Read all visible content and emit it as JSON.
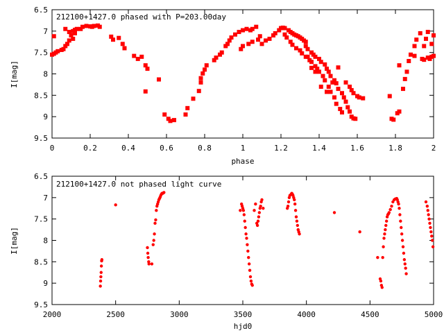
{
  "chart_data": [
    {
      "type": "scatter",
      "title": "212100+1427.0 phased with P=203.00day",
      "xlabel": "phase",
      "ylabel": "I[mag]",
      "xlim": [
        0,
        2
      ],
      "ylim": [
        9.5,
        6.5
      ],
      "y_inverted": true,
      "x_ticks": [
        "0",
        "0.2",
        "0.4",
        "0.6",
        "0.8",
        "1",
        "1.2",
        "1.4",
        "1.6",
        "1.8",
        "2"
      ],
      "x_tick_values": [
        0,
        0.2,
        0.4,
        0.6,
        0.8,
        1.0,
        1.2,
        1.4,
        1.6,
        1.8,
        2.0
      ],
      "y_ticks": [
        "6.5",
        "7",
        "7.5",
        "8",
        "8.5",
        "9",
        "9.5"
      ],
      "y_tick_values": [
        6.5,
        7,
        7.5,
        8,
        8.5,
        9,
        9.5
      ],
      "grid": false,
      "marker": "filled-square",
      "color": "#ff0000",
      "points": [
        [
          0.0,
          7.55
        ],
        [
          0.01,
          7.53
        ],
        [
          0.02,
          7.5
        ],
        [
          0.03,
          7.47
        ],
        [
          0.05,
          7.44
        ],
        [
          0.06,
          7.42
        ],
        [
          0.07,
          7.35
        ],
        [
          0.08,
          7.3
        ],
        [
          0.09,
          7.22
        ],
        [
          0.1,
          7.1
        ],
        [
          0.11,
          7.0
        ],
        [
          0.12,
          6.97
        ],
        [
          0.13,
          6.95
        ],
        [
          0.16,
          6.9
        ],
        [
          0.18,
          6.88
        ],
        [
          0.2,
          6.89
        ],
        [
          0.21,
          6.9
        ],
        [
          0.22,
          6.88
        ],
        [
          0.24,
          6.87
        ],
        [
          0.25,
          6.9
        ],
        [
          0.01,
          7.12
        ],
        [
          0.07,
          6.95
        ],
        [
          0.09,
          7.02
        ],
        [
          0.11,
          7.18
        ],
        [
          0.12,
          7.05
        ],
        [
          0.15,
          6.95
        ],
        [
          0.31,
          7.13
        ],
        [
          0.32,
          7.2
        ],
        [
          0.35,
          7.16
        ],
        [
          0.37,
          7.3
        ],
        [
          0.38,
          7.4
        ],
        [
          0.43,
          7.58
        ],
        [
          0.45,
          7.65
        ],
        [
          0.47,
          7.6
        ],
        [
          0.49,
          7.8
        ],
        [
          0.5,
          7.88
        ],
        [
          0.49,
          8.41
        ],
        [
          0.56,
          8.13
        ],
        [
          0.59,
          8.95
        ],
        [
          0.61,
          9.05
        ],
        [
          0.62,
          9.1
        ],
        [
          0.64,
          9.08
        ],
        [
          0.7,
          8.95
        ],
        [
          0.71,
          8.8
        ],
        [
          0.74,
          8.58
        ],
        [
          0.77,
          8.4
        ],
        [
          0.78,
          8.2
        ],
        [
          0.78,
          8.1
        ],
        [
          0.79,
          7.99
        ],
        [
          0.8,
          7.9
        ],
        [
          0.81,
          7.8
        ],
        [
          0.85,
          7.68
        ],
        [
          0.86,
          7.62
        ],
        [
          0.88,
          7.55
        ],
        [
          0.89,
          7.5
        ],
        [
          0.91,
          7.35
        ],
        [
          0.92,
          7.3
        ],
        [
          0.93,
          7.22
        ],
        [
          0.94,
          7.15
        ],
        [
          0.96,
          7.08
        ],
        [
          0.98,
          7.02
        ],
        [
          1.0,
          6.98
        ],
        [
          1.02,
          6.95
        ],
        [
          1.04,
          6.98
        ],
        [
          1.05,
          6.95
        ],
        [
          1.07,
          6.9
        ],
        [
          0.99,
          7.42
        ],
        [
          1.0,
          7.35
        ],
        [
          1.03,
          7.3
        ],
        [
          1.05,
          7.25
        ],
        [
          1.08,
          7.2
        ],
        [
          1.09,
          7.12
        ],
        [
          1.1,
          7.3
        ],
        [
          1.12,
          7.22
        ],
        [
          1.14,
          7.18
        ],
        [
          1.16,
          7.1
        ],
        [
          1.17,
          7.05
        ],
        [
          1.19,
          6.98
        ],
        [
          1.2,
          6.93
        ],
        [
          1.21,
          6.92
        ],
        [
          1.22,
          6.93
        ],
        [
          1.24,
          6.98
        ],
        [
          1.25,
          7.02
        ],
        [
          1.26,
          7.05
        ],
        [
          1.27,
          7.08
        ],
        [
          1.28,
          7.1
        ],
        [
          1.29,
          7.12
        ],
        [
          1.3,
          7.15
        ],
        [
          1.31,
          7.18
        ],
        [
          1.32,
          7.22
        ],
        [
          1.33,
          7.25
        ],
        [
          1.22,
          7.08
        ],
        [
          1.23,
          7.15
        ],
        [
          1.25,
          7.25
        ],
        [
          1.26,
          7.32
        ],
        [
          1.28,
          7.4
        ],
        [
          1.3,
          7.45
        ],
        [
          1.31,
          7.52
        ],
        [
          1.33,
          7.6
        ],
        [
          1.35,
          7.68
        ],
        [
          1.36,
          7.72
        ],
        [
          1.38,
          7.82
        ],
        [
          1.39,
          7.88
        ],
        [
          1.4,
          7.95
        ],
        [
          1.42,
          8.05
        ],
        [
          1.43,
          8.15
        ],
        [
          1.45,
          8.3
        ],
        [
          1.46,
          8.42
        ],
        [
          1.48,
          8.55
        ],
        [
          1.49,
          8.7
        ],
        [
          1.51,
          8.82
        ],
        [
          1.52,
          8.9
        ],
        [
          1.33,
          7.35
        ],
        [
          1.34,
          7.42
        ],
        [
          1.36,
          7.5
        ],
        [
          1.37,
          7.55
        ],
        [
          1.38,
          7.6
        ],
        [
          1.4,
          7.65
        ],
        [
          1.41,
          7.72
        ],
        [
          1.43,
          7.78
        ],
        [
          1.44,
          7.88
        ],
        [
          1.45,
          7.95
        ],
        [
          1.46,
          8.05
        ],
        [
          1.48,
          8.15
        ],
        [
          1.49,
          8.22
        ],
        [
          1.5,
          8.35
        ],
        [
          1.52,
          8.45
        ],
        [
          1.53,
          8.55
        ],
        [
          1.54,
          8.65
        ],
        [
          1.55,
          8.78
        ],
        [
          1.56,
          8.88
        ],
        [
          1.57,
          9.0
        ],
        [
          1.58,
          9.04
        ],
        [
          1.59,
          9.05
        ],
        [
          1.54,
          8.2
        ],
        [
          1.56,
          8.3
        ],
        [
          1.57,
          8.38
        ],
        [
          1.58,
          8.45
        ],
        [
          1.6,
          8.52
        ],
        [
          1.61,
          8.55
        ],
        [
          1.63,
          8.57
        ],
        [
          1.41,
          8.3
        ],
        [
          1.44,
          8.42
        ],
        [
          1.47,
          8.2
        ],
        [
          1.5,
          7.85
        ],
        [
          1.38,
          7.95
        ],
        [
          1.36,
          7.86
        ],
        [
          1.34,
          7.6
        ],
        [
          1.77,
          8.52
        ],
        [
          1.78,
          9.05
        ],
        [
          1.79,
          9.07
        ],
        [
          1.81,
          8.92
        ],
        [
          1.82,
          8.88
        ],
        [
          1.82,
          7.8
        ],
        [
          1.84,
          8.35
        ],
        [
          1.85,
          8.12
        ],
        [
          1.86,
          7.95
        ],
        [
          1.87,
          7.7
        ],
        [
          1.88,
          7.55
        ],
        [
          1.9,
          7.58
        ],
        [
          1.9,
          7.35
        ],
        [
          1.91,
          7.2
        ],
        [
          1.93,
          7.05
        ],
        [
          1.95,
          7.35
        ],
        [
          1.96,
          7.18
        ],
        [
          1.97,
          7.02
        ],
        [
          1.98,
          7.65
        ],
        [
          1.99,
          7.6
        ],
        [
          2.0,
          7.58
        ],
        [
          1.94,
          7.65
        ],
        [
          1.95,
          7.67
        ],
        [
          1.97,
          7.62
        ],
        [
          1.99,
          7.3
        ],
        [
          2.0,
          7.1
        ]
      ]
    },
    {
      "type": "scatter",
      "title": "212100+1427.0 not phased light curve",
      "xlabel": "hjd0",
      "ylabel": "I[mag]",
      "xlim": [
        2000,
        5000
      ],
      "ylim": [
        9.5,
        6.5
      ],
      "y_inverted": true,
      "x_ticks": [
        "2000",
        "2500",
        "3000",
        "3500",
        "4000",
        "4500",
        "5000"
      ],
      "x_tick_values": [
        2000,
        2500,
        3000,
        3500,
        4000,
        4500,
        5000
      ],
      "y_ticks": [
        "6.5",
        "7",
        "7.5",
        "8",
        "8.5",
        "9",
        "9.5"
      ],
      "y_tick_values": [
        6.5,
        7,
        7.5,
        8,
        8.5,
        9,
        9.5
      ],
      "grid": false,
      "marker": "filled-circle",
      "color": "#ff0000",
      "points": [
        [
          2380,
          9.07
        ],
        [
          2382,
          8.95
        ],
        [
          2384,
          8.85
        ],
        [
          2386,
          8.75
        ],
        [
          2388,
          8.6
        ],
        [
          2390,
          8.48
        ],
        [
          2392,
          8.45
        ],
        [
          2500,
          7.17
        ],
        [
          2750,
          8.17
        ],
        [
          2753,
          8.3
        ],
        [
          2756,
          8.4
        ],
        [
          2760,
          8.5
        ],
        [
          2762,
          8.55
        ],
        [
          2785,
          8.55
        ],
        [
          2795,
          8.1
        ],
        [
          2800,
          8.0
        ],
        [
          2805,
          7.85
        ],
        [
          2810,
          7.6
        ],
        [
          2815,
          7.52
        ],
        [
          2820,
          7.3
        ],
        [
          2825,
          7.2
        ],
        [
          2830,
          7.15
        ],
        [
          2835,
          7.1
        ],
        [
          2840,
          7.05
        ],
        [
          2845,
          7.02
        ],
        [
          2850,
          6.99
        ],
        [
          2855,
          6.95
        ],
        [
          2860,
          6.92
        ],
        [
          2865,
          6.9
        ],
        [
          2870,
          6.9
        ],
        [
          2875,
          6.89
        ],
        [
          2880,
          6.88
        ],
        [
          3480,
          7.3
        ],
        [
          3490,
          7.15
        ],
        [
          3495,
          7.2
        ],
        [
          3500,
          7.25
        ],
        [
          3505,
          7.3
        ],
        [
          3510,
          7.4
        ],
        [
          3515,
          7.55
        ],
        [
          3520,
          7.7
        ],
        [
          3525,
          7.85
        ],
        [
          3530,
          7.95
        ],
        [
          3535,
          8.1
        ],
        [
          3540,
          8.25
        ],
        [
          3545,
          8.4
        ],
        [
          3550,
          8.55
        ],
        [
          3555,
          8.7
        ],
        [
          3560,
          8.85
        ],
        [
          3565,
          8.95
        ],
        [
          3570,
          9.02
        ],
        [
          3575,
          9.05
        ],
        [
          3590,
          7.3
        ],
        [
          3600,
          7.15
        ],
        [
          3610,
          7.6
        ],
        [
          3615,
          7.65
        ],
        [
          3620,
          7.55
        ],
        [
          3625,
          7.45
        ],
        [
          3630,
          7.35
        ],
        [
          3635,
          7.25
        ],
        [
          3640,
          7.2
        ],
        [
          3645,
          7.1
        ],
        [
          3650,
          7.05
        ],
        [
          3660,
          7.25
        ],
        [
          3850,
          7.25
        ],
        [
          3855,
          7.2
        ],
        [
          3860,
          7.1
        ],
        [
          3865,
          7.0
        ],
        [
          3870,
          6.95
        ],
        [
          3880,
          6.92
        ],
        [
          3885,
          6.9
        ],
        [
          3890,
          6.92
        ],
        [
          3895,
          6.95
        ],
        [
          3900,
          7.0
        ],
        [
          3905,
          7.05
        ],
        [
          3910,
          7.15
        ],
        [
          3915,
          7.3
        ],
        [
          3920,
          7.45
        ],
        [
          3925,
          7.55
        ],
        [
          3930,
          7.65
        ],
        [
          3935,
          7.75
        ],
        [
          3940,
          7.8
        ],
        [
          3945,
          7.85
        ],
        [
          4220,
          7.35
        ],
        [
          4420,
          7.8
        ],
        [
          4560,
          8.4
        ],
        [
          4580,
          8.9
        ],
        [
          4585,
          8.95
        ],
        [
          4590,
          9.05
        ],
        [
          4595,
          9.1
        ],
        [
          4600,
          8.4
        ],
        [
          4605,
          8.15
        ],
        [
          4610,
          7.95
        ],
        [
          4615,
          7.85
        ],
        [
          4620,
          7.75
        ],
        [
          4625,
          7.65
        ],
        [
          4630,
          7.55
        ],
        [
          4635,
          7.45
        ],
        [
          4640,
          7.4
        ],
        [
          4645,
          7.38
        ],
        [
          4650,
          7.35
        ],
        [
          4660,
          7.28
        ],
        [
          4670,
          7.2
        ],
        [
          4680,
          7.1
        ],
        [
          4690,
          7.05
        ],
        [
          4700,
          7.03
        ],
        [
          4710,
          7.02
        ],
        [
          4715,
          7.05
        ],
        [
          4720,
          7.1
        ],
        [
          4725,
          7.15
        ],
        [
          4730,
          7.25
        ],
        [
          4735,
          7.4
        ],
        [
          4740,
          7.55
        ],
        [
          4745,
          7.7
        ],
        [
          4750,
          7.85
        ],
        [
          4755,
          8.0
        ],
        [
          4760,
          8.15
        ],
        [
          4765,
          8.3
        ],
        [
          4770,
          8.45
        ],
        [
          4775,
          8.55
        ],
        [
          4780,
          8.65
        ],
        [
          4785,
          8.78
        ],
        [
          4940,
          7.1
        ],
        [
          4950,
          7.2
        ],
        [
          4955,
          7.3
        ],
        [
          4960,
          7.4
        ],
        [
          4965,
          7.5
        ],
        [
          4970,
          7.6
        ],
        [
          4975,
          7.7
        ],
        [
          4980,
          7.8
        ],
        [
          4985,
          7.9
        ],
        [
          4990,
          8.0
        ],
        [
          4995,
          8.15
        ]
      ]
    }
  ]
}
